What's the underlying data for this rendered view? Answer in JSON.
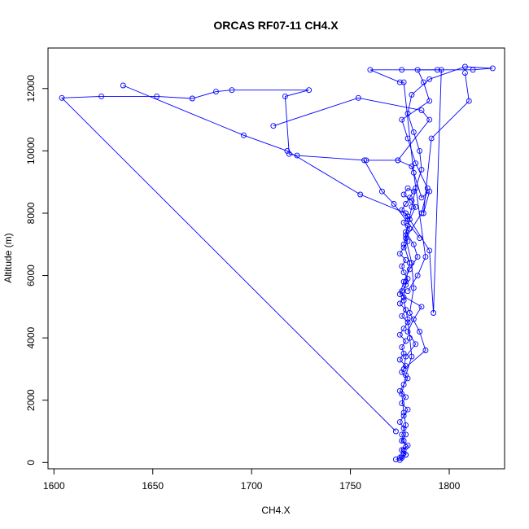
{
  "chart_data": {
    "type": "line",
    "title": "ORCAS RF07-11 CH4.X",
    "xlabel": "CH4.X",
    "ylabel": "Altitude (m)",
    "xlim": [
      1597,
      1828
    ],
    "ylim": [
      -200,
      13300
    ],
    "xticks": [
      1600,
      1650,
      1700,
      1750,
      1800
    ],
    "yticks": [
      0,
      2000,
      4000,
      6000,
      8000,
      10000,
      12000
    ],
    "grid": false,
    "legend": "none",
    "series_color": "#0000ff",
    "marker": "open-circle",
    "series": [
      {
        "x": [
          1775,
          1776,
          1778,
          1777,
          1779,
          1776,
          1778,
          1777,
          1775,
          1777,
          1779,
          1776,
          1778,
          1775,
          1777,
          1779,
          1776,
          1778,
          1775,
          1777,
          1776,
          1778,
          1775,
          1777,
          1779,
          1776,
          1778,
          1775,
          1777,
          1776,
          1778,
          1779,
          1777,
          1776,
          1778,
          1775,
          1777,
          1779,
          1778,
          1780,
          1777,
          1779,
          1776,
          1778,
          1780,
          1782,
          1779,
          1777,
          1781,
          1783,
          1780,
          1778,
          1782,
          1784,
          1780,
          1777,
          1775,
          1786,
          1782,
          1779,
          1783,
          1778,
          1777,
          1788,
          1785,
          1780,
          1782,
          1781,
          1778,
          1786,
          1789,
          1783,
          1779,
          1776,
          1790,
          1787,
          1784,
          1794,
          1812,
          1822,
          1808,
          1790,
          1781,
          1779,
          1782,
          1785,
          1786,
          1783,
          1781,
          1779,
          1777,
          1780,
          1778,
          1777,
          1779,
          1780,
          1781,
          1778,
          1776,
          1777,
          1778,
          1776,
          1777,
          1778,
          1776,
          1777,
          1778,
          1776,
          1775,
          1773
        ],
        "y": [
          80,
          150,
          250,
          400,
          550,
          700,
          900,
          1100,
          1300,
          1500,
          1700,
          1900,
          2100,
          2300,
          2500,
          2700,
          2900,
          3100,
          3300,
          3500,
          3700,
          3900,
          4100,
          4300,
          4500,
          4700,
          4900,
          5100,
          5300,
          5500,
          5700,
          5900,
          6100,
          6300,
          6500,
          6700,
          6900,
          7100,
          7300,
          7500,
          7700,
          7900,
          8100,
          8300,
          8500,
          8700,
          8800,
          8600,
          8400,
          8200,
          7800,
          7400,
          7000,
          6600,
          6200,
          5800,
          5400,
          5000,
          4600,
          4200,
          3800,
          3400,
          3000,
          3600,
          4200,
          4800,
          5600,
          6400,
          7200,
          8000,
          8800,
          9600,
          10400,
          11000,
          11600,
          12200,
          12600,
          12600,
          12600,
          12650,
          12700,
          12300,
          11800,
          11200,
          10600,
          10000,
          9400,
          8800,
          8200,
          7600,
          7000,
          6400,
          5800,
          5200,
          4600,
          4000,
          3400,
          2800,
          2200,
          1600,
          1200,
          900,
          700,
          500,
          400,
          300,
          250,
          200,
          150,
          100
        ]
      },
      {
        "x": [
          1773,
          1604,
          1624,
          1652,
          1670,
          1682,
          1690,
          1729,
          1717,
          1719,
          1723,
          1757,
          1766,
          1772,
          1785
        ],
        "y": [
          1000,
          11700,
          11750,
          11750,
          11680,
          11900,
          11950,
          11950,
          11750,
          9900,
          9850,
          9700,
          8700,
          8300,
          7200
        ]
      },
      {
        "x": [
          1635,
          1696,
          1718,
          1755,
          1778,
          1790,
          1792,
          1796,
          1776,
          1760,
          1775,
          1777,
          1782,
          1788,
          1784,
          1779
        ],
        "y": [
          12100,
          10500,
          10000,
          8600,
          8000,
          6800,
          4800,
          12600,
          12600,
          12600,
          12200,
          12200,
          9300,
          6600,
          6000,
          5500
        ]
      },
      {
        "x": [
          1711,
          1754,
          1786,
          1790,
          1774,
          1758,
          1774,
          1781,
          1786,
          1790,
          1787,
          1791,
          1810,
          1808
        ],
        "y": [
          10800,
          11700,
          11300,
          11000,
          9700,
          9700,
          9700,
          9500,
          8500,
          8700,
          8000,
          10400,
          11600,
          12500
        ]
      }
    ]
  }
}
